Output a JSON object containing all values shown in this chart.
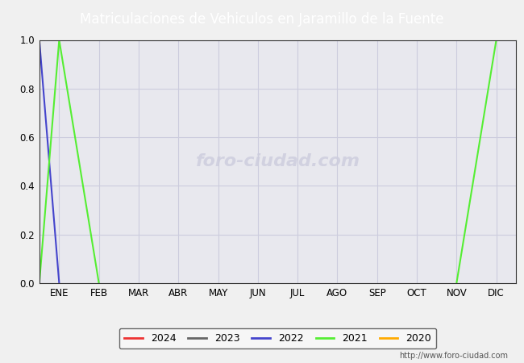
{
  "title": "Matriculaciones de Vehiculos en Jaramillo de la Fuente",
  "title_bg_color": "#4466bb",
  "title_text_color": "#ffffff",
  "months": [
    "ENE",
    "FEB",
    "MAR",
    "ABR",
    "MAY",
    "JUN",
    "JUL",
    "AGO",
    "SEP",
    "OCT",
    "NOV",
    "DIC"
  ],
  "ylim": [
    0.0,
    1.0
  ],
  "yticks": [
    0.0,
    0.2,
    0.4,
    0.6,
    0.8,
    1.0
  ],
  "series": {
    "2024": {
      "color": "#ee3333",
      "data": [
        null,
        null,
        null,
        null,
        null,
        null,
        null,
        null,
        null,
        null,
        null,
        null
      ]
    },
    "2023": {
      "color": "#666666",
      "data": [
        null,
        null,
        null,
        null,
        null,
        null,
        null,
        null,
        null,
        null,
        null,
        null
      ]
    },
    "2022": {
      "color": "#4444cc",
      "data": [
        1.0,
        0.0,
        null,
        null,
        null,
        null,
        null,
        null,
        null,
        null,
        null,
        null
      ]
    },
    "2021": {
      "color": "#55ee33",
      "data": [
        1.0,
        0.0,
        null,
        null,
        null,
        null,
        null,
        null,
        null,
        null,
        null,
        1.0
      ]
    },
    "2020": {
      "color": "#ffaa00",
      "data": [
        null,
        null,
        null,
        null,
        null,
        null,
        null,
        null,
        null,
        null,
        null,
        null
      ]
    }
  },
  "legend_order": [
    "2024",
    "2023",
    "2022",
    "2021",
    "2020"
  ],
  "url": "http://www.foro-ciudad.com",
  "grid_color": "#ccccdd",
  "plot_bg_color": "#e8e8ee",
  "fig_bg_color": "#f0f0f0",
  "watermark_text": "foro-ciudad.com",
  "watermark_color": "#b0b0cc",
  "watermark_alpha": 0.4
}
